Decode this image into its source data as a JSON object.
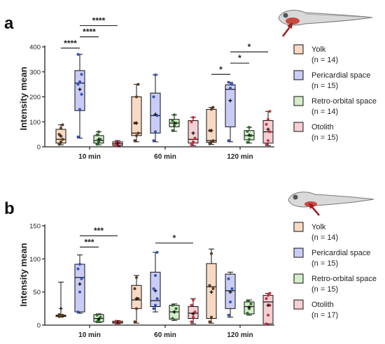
{
  "chart_data": [
    {
      "panel": "a",
      "type": "box",
      "ylabel": "Intensity mean",
      "ylim": [
        0,
        400
      ],
      "yticks": [
        0,
        100,
        200,
        300,
        400
      ],
      "categories": [
        "10 min",
        "60 min",
        "120 min"
      ],
      "series": [
        {
          "name": "Yolk",
          "n": "(n = 14)",
          "color": "#f8d9c4",
          "dot": "#5a3a1e",
          "boxes": [
            {
              "min": 8,
              "q1": 15,
              "median": 30,
              "q3": 70,
              "max": 88,
              "mean": 43,
              "points": [
                10,
                20,
                30,
                50,
                75,
                88
              ]
            },
            {
              "min": 20,
              "q1": 45,
              "median": 55,
              "q3": 200,
              "max": 250,
              "mean": 95,
              "points": [
                25,
                45,
                55,
                95,
                200,
                250
              ]
            },
            {
              "min": 10,
              "q1": 18,
              "median": 25,
              "q3": 150,
              "max": 158,
              "mean": 65,
              "points": [
                12,
                20,
                25,
                65,
                150,
                158
              ]
            }
          ]
        },
        {
          "name": "Pericardial space",
          "n": "(n = 15)",
          "color": "#c9cdf6",
          "dot": "#3551c2",
          "boxes": [
            {
              "min": 35,
              "q1": 145,
              "median": 255,
              "q3": 305,
              "max": 370,
              "mean": 230,
              "points": [
                40,
                150,
                210,
                250,
                260,
                290,
                370
              ]
            },
            {
              "min": 20,
              "q1": 55,
              "median": 125,
              "q3": 215,
              "max": 288,
              "mean": 130,
              "points": [
                25,
                60,
                125,
                200,
                288
              ]
            },
            {
              "min": 20,
              "q1": 80,
              "median": 230,
              "q3": 248,
              "max": 258,
              "mean": 185,
              "points": [
                25,
                235,
                250,
                258
              ]
            }
          ]
        },
        {
          "name": "Retro-orbital space",
          "n": "(n = 14)",
          "color": "#d3ecc9",
          "dot": "#2e6b2a",
          "boxes": [
            {
              "min": 8,
              "q1": 15,
              "median": 25,
              "q3": 45,
              "max": 60,
              "mean": 30,
              "points": [
                10,
                20,
                30,
                48,
                60
              ]
            },
            {
              "min": 62,
              "q1": 80,
              "median": 95,
              "q3": 110,
              "max": 128,
              "mean": 95,
              "points": [
                65,
                85,
                95,
                105,
                128
              ]
            },
            {
              "min": 15,
              "q1": 28,
              "median": 45,
              "q3": 65,
              "max": 78,
              "mean": 47,
              "points": [
                18,
                30,
                45,
                62,
                78
              ]
            }
          ]
        },
        {
          "name": "Otolith",
          "n": "(n = 15)",
          "color": "#f6cfd3",
          "dot": "#c7323f",
          "boxes": [
            {
              "min": 3,
              "q1": 5,
              "median": 12,
              "q3": 20,
              "max": 25,
              "mean": 14,
              "points": [
                5,
                10,
                15,
                20
              ]
            },
            {
              "min": 5,
              "q1": 15,
              "median": 30,
              "q3": 105,
              "max": 118,
              "mean": 55,
              "points": [
                8,
                20,
                35,
                100,
                118
              ]
            },
            {
              "min": 5,
              "q1": 15,
              "median": 60,
              "q3": 105,
              "max": 142,
              "mean": 70,
              "points": [
                10,
                25,
                60,
                90,
                110,
                142
              ]
            }
          ]
        }
      ],
      "significance": [
        {
          "cat": 0,
          "from": 0,
          "to": 1,
          "y": 395,
          "label": "****"
        },
        {
          "cat": 0,
          "from": 1,
          "to": 2,
          "y": 440,
          "label": "****"
        },
        {
          "cat": 0,
          "from": 1,
          "to": 3,
          "y": 485,
          "label": "****"
        },
        {
          "cat": 2,
          "from": 0,
          "to": 1,
          "y": 290,
          "label": "*"
        },
        {
          "cat": 2,
          "from": 1,
          "to": 2,
          "y": 335,
          "label": "*"
        },
        {
          "cat": 2,
          "from": 1,
          "to": 3,
          "y": 380,
          "label": "*"
        }
      ]
    },
    {
      "panel": "b",
      "type": "box",
      "ylabel": "Intensity mean",
      "ylim": [
        0,
        150
      ],
      "yticks": [
        0,
        50,
        100,
        150
      ],
      "categories": [
        "10 min",
        "60 min",
        "120 min"
      ],
      "series": [
        {
          "name": "Yolk",
          "n": "(n = 14)",
          "color": "#f8d9c4",
          "dot": "#5a3a1e",
          "boxes": [
            {
              "min": 12,
              "q1": 13,
              "median": 14,
              "q3": 15,
              "max": 65,
              "mean": 25,
              "points": [
                13,
                14,
                15,
                16
              ]
            },
            {
              "min": 3,
              "q1": 25,
              "median": 38,
              "q3": 60,
              "max": 75,
              "mean": 40,
              "points": [
                5,
                25,
                40,
                55,
                72
              ]
            },
            {
              "min": 3,
              "q1": 10,
              "median": 58,
              "q3": 93,
              "max": 115,
              "mean": 50,
              "points": [
                5,
                12,
                55,
                60,
                108
              ]
            }
          ]
        },
        {
          "name": "Pericardial space",
          "n": "(n = 15)",
          "color": "#c9cdf6",
          "dot": "#3551c2",
          "boxes": [
            {
              "min": 18,
              "q1": 20,
              "median": 72,
              "q3": 92,
              "max": 106,
              "mean": 62,
              "points": [
                20,
                50,
                70,
                85,
                92
              ]
            },
            {
              "min": 20,
              "q1": 28,
              "median": 37,
              "q3": 80,
              "max": 110,
              "mean": 52,
              "points": [
                25,
                30,
                40,
                55,
                75,
                110
              ]
            },
            {
              "min": 12,
              "q1": 25,
              "median": 52,
              "q3": 77,
              "max": 80,
              "mean": 50,
              "points": [
                15,
                35,
                55,
                70
              ]
            }
          ]
        },
        {
          "name": "Retro-orbital space",
          "n": "(n = 15)",
          "color": "#d3ecc9",
          "dot": "#2e6b2a",
          "boxes": [
            {
              "min": 4,
              "q1": 5,
              "median": 10,
              "q3": 16,
              "max": 17,
              "mean": 9,
              "points": [
                5,
                8,
                12,
                15
              ]
            },
            {
              "min": 7,
              "q1": 9,
              "median": 20,
              "q3": 30,
              "max": 32,
              "mean": 20,
              "points": [
                10,
                20,
                25,
                30
              ]
            },
            {
              "min": 15,
              "q1": 17,
              "median": 28,
              "q3": 35,
              "max": 38,
              "mean": 27,
              "points": [
                18,
                25,
                32,
                37
              ]
            }
          ]
        },
        {
          "name": "Otolith",
          "n": "(n = 17)",
          "color": "#f6cfd3",
          "dot": "#c7323f",
          "boxes": [
            {
              "min": 2,
              "q1": 3,
              "median": 4,
              "q3": 6,
              "max": 7,
              "mean": 4,
              "points": [
                3,
                4,
                5,
                6
              ]
            },
            {
              "min": 2,
              "q1": 10,
              "median": 18,
              "q3": 28,
              "max": 40,
              "mean": 17,
              "points": [
                5,
                12,
                20,
                30,
                38
              ]
            },
            {
              "min": 0,
              "q1": 2,
              "median": 35,
              "q3": 45,
              "max": 48,
              "mean": 30,
              "points": [
                2,
                15,
                30,
                40,
                45,
                48
              ]
            }
          ]
        }
      ],
      "significance": [
        {
          "cat": 0,
          "from": 1,
          "to": 2,
          "y": 118,
          "label": "***"
        },
        {
          "cat": 0,
          "from": 1,
          "to": 3,
          "y": 135,
          "label": "***"
        },
        {
          "cat": 1,
          "from": 1,
          "to": 3,
          "y": 124,
          "label": "*"
        }
      ]
    }
  ]
}
